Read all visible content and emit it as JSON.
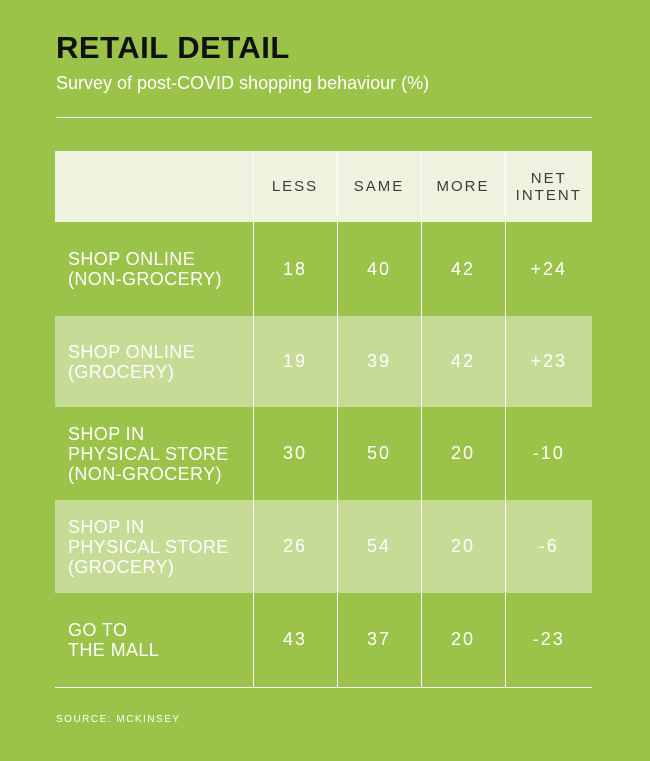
{
  "title": "RETAIL DETAIL",
  "subtitle": "Survey of post-COVID shopping behaviour (%)",
  "source": "SOURCE: MCKINSEY",
  "colors": {
    "background": "#9bc34a",
    "header_row": "#eef3df",
    "alt_row": "#c6dc96",
    "title": "#111111"
  },
  "chart_data": {
    "type": "table",
    "columns": [
      "",
      "LESS",
      "SAME",
      "MORE",
      "NET INTENT"
    ],
    "column_label_lines": [
      [],
      [
        "LESS"
      ],
      [
        "SAME"
      ],
      [
        "MORE"
      ],
      [
        "NET",
        "INTENT"
      ]
    ],
    "rows": [
      {
        "label_lines": [
          "SHOP ONLINE",
          "(NON-GROCERY)"
        ],
        "less": "18",
        "same": "40",
        "more": "42",
        "net_intent": "+24"
      },
      {
        "label_lines": [
          "SHOP ONLINE",
          "(GROCERY)"
        ],
        "less": "19",
        "same": "39",
        "more": "42",
        "net_intent": "+23"
      },
      {
        "label_lines": [
          "SHOP IN",
          "PHYSICAL STORE",
          "(NON-GROCERY)"
        ],
        "less": "30",
        "same": "50",
        "more": "20",
        "net_intent": "-10"
      },
      {
        "label_lines": [
          "SHOP IN",
          "PHYSICAL STORE",
          "(GROCERY)"
        ],
        "less": "26",
        "same": "54",
        "more": "20",
        "net_intent": "-6"
      },
      {
        "label_lines": [
          "GO TO",
          "THE MALL"
        ],
        "less": "43",
        "same": "37",
        "more": "20",
        "net_intent": "-23"
      }
    ]
  }
}
